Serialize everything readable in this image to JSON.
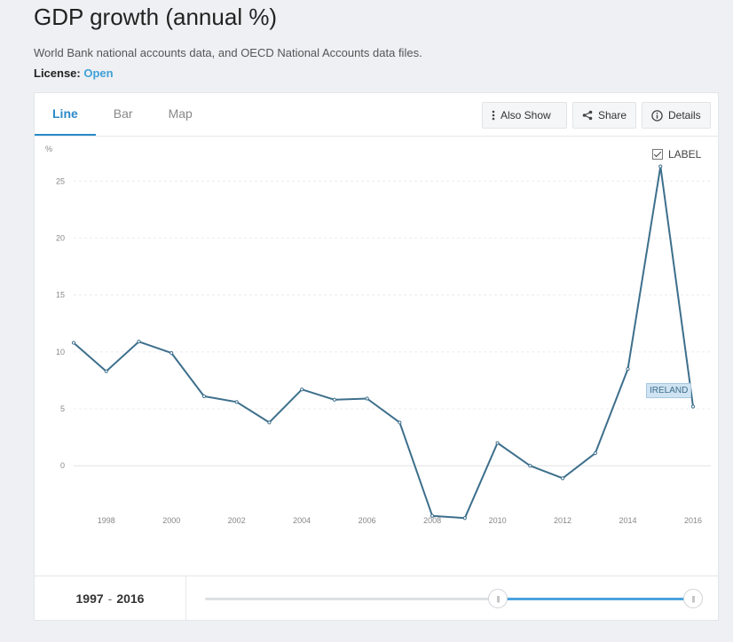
{
  "header": {
    "title": "GDP growth (annual %)",
    "source": "World Bank national accounts data, and OECD National Accounts data files.",
    "license_label": "License:",
    "license_value": "Open"
  },
  "tabs": [
    {
      "label": "Line",
      "active": true
    },
    {
      "label": "Bar",
      "active": false
    },
    {
      "label": "Map",
      "active": false
    }
  ],
  "toolbar": {
    "also_show": "Also Show",
    "share": "Share",
    "details": "Details"
  },
  "label_toggle": {
    "label": "LABEL",
    "checked": true
  },
  "range": {
    "start": "1997",
    "sep": "-",
    "end": "2016",
    "fill_start_fraction": 0.6,
    "fill_end_fraction": 1.0
  },
  "colors": {
    "series": "#3d6f8c",
    "accent": "#2a8ac8",
    "slider": "#4aa3df"
  },
  "chart_data": {
    "type": "line",
    "ylabel": "%",
    "ylim": [
      -4.5,
      26.5
    ],
    "yticks": [
      0,
      5,
      10,
      15,
      20,
      25
    ],
    "xlim": [
      1997,
      2016
    ],
    "xticks": [
      1998,
      2000,
      2002,
      2004,
      2006,
      2008,
      2010,
      2012,
      2014,
      2016
    ],
    "series": [
      {
        "name": "IRELAND",
        "x": [
          1997,
          1998,
          1999,
          2000,
          2001,
          2002,
          2003,
          2004,
          2005,
          2006,
          2007,
          2008,
          2009,
          2010,
          2011,
          2012,
          2013,
          2014,
          2015,
          2016
        ],
        "values": [
          10.8,
          8.3,
          10.9,
          9.9,
          6.1,
          5.6,
          3.8,
          6.7,
          5.8,
          5.9,
          3.8,
          -4.4,
          -4.6,
          2.0,
          0.0,
          -1.1,
          1.1,
          8.5,
          26.3,
          5.2
        ]
      }
    ]
  }
}
